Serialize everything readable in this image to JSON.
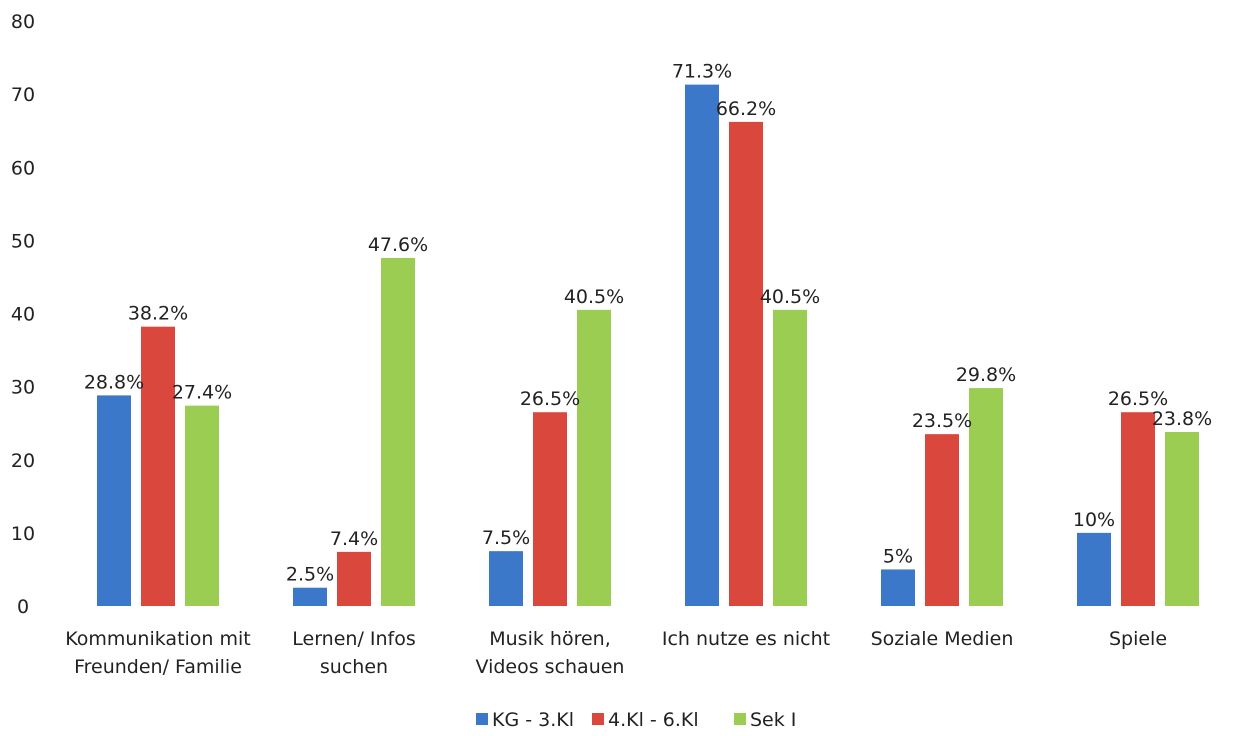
{
  "chart_data": {
    "type": "bar",
    "title": "",
    "xlabel": "",
    "ylabel": "",
    "ylim": [
      0,
      80
    ],
    "yticks": [
      0,
      10,
      20,
      30,
      40,
      50,
      60,
      70,
      80
    ],
    "ytick_labels": [
      "0",
      "10",
      "20",
      "30",
      "40",
      "50",
      "60",
      "70",
      "80"
    ],
    "grid": false,
    "legend_position": "bottom",
    "categories": [
      [
        "Kommunikation mit",
        "Freunden/ Familie"
      ],
      [
        "Lernen/ Infos",
        "suchen"
      ],
      [
        "Musik hören,",
        "Videos schauen"
      ],
      [
        "Ich nutze es nicht"
      ],
      [
        "Soziale Medien"
      ],
      [
        "Spiele"
      ]
    ],
    "series": [
      {
        "name": "KG - 3.Kl",
        "color": "#3b78c9",
        "values": [
          28.8,
          2.5,
          7.5,
          71.3,
          5,
          10
        ],
        "labels": [
          "28.8%",
          "2.5%",
          "7.5%",
          "71.3%",
          "5%",
          "10%"
        ]
      },
      {
        "name": "4.Kl - 6.Kl",
        "color": "#d9473d",
        "values": [
          38.2,
          7.4,
          26.5,
          66.2,
          23.5,
          26.5
        ],
        "labels": [
          "38.2%",
          "7.4%",
          "26.5%",
          "66.2%",
          "23.5%",
          "26.5%"
        ]
      },
      {
        "name": "Sek I",
        "color": "#9acd52",
        "values": [
          27.4,
          47.6,
          40.5,
          40.5,
          29.8,
          23.8
        ],
        "labels": [
          "27.4%",
          "47.6%",
          "40.5%",
          "40.5%",
          "29.8%",
          "23.8%"
        ]
      }
    ]
  }
}
